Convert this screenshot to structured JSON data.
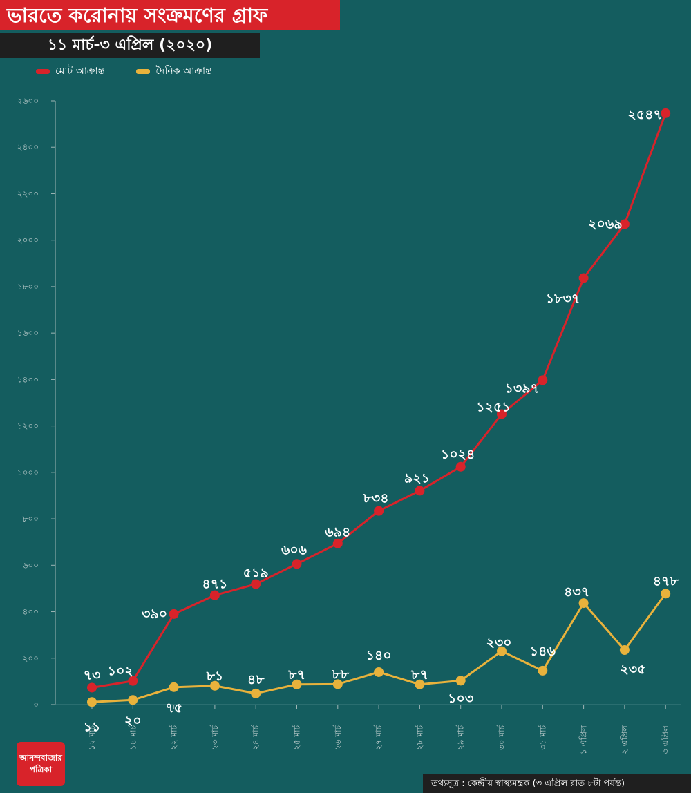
{
  "header": {
    "title": "ভারতে করোনায় সংক্রমণের গ্রাফ",
    "subtitle": "১১ মার্চ-৩ এপ্রিল (২০২০)"
  },
  "legend": {
    "total_label": "মোট আক্রান্ত",
    "daily_label": "দৈনিক আক্রান্ত"
  },
  "colors": {
    "background": "#145d5f",
    "total": "#d8232a",
    "daily": "#e8b23c"
  },
  "chart_data": {
    "type": "line",
    "title": "ভারতে করোনায় সংক্রমণের গ্রাফ",
    "xlabel": "",
    "ylabel": "",
    "ylim": [
      0,
      2600
    ],
    "yticks": [
      0,
      200,
      400,
      600,
      800,
      1000,
      1200,
      1400,
      1600,
      1800,
      2000,
      2200,
      2400,
      2600
    ],
    "ytick_labels": [
      "০",
      "২০০",
      "৪০০",
      "৬০০",
      "৮০০",
      "১০০০",
      "১২০০",
      "১৪০০",
      "১৬০০",
      "১৮০০",
      "২০০০",
      "২২০০",
      "২৪০০",
      "২৬০০"
    ],
    "categories": [
      "১২ মার্চ",
      "১৪ মার্চ",
      "২২ মার্চ",
      "২৩ মার্চ",
      "২৪ মার্চ",
      "২৫ মার্চ",
      "২৬ মার্চ",
      "২৭ মার্চ",
      "২৮ মার্চ",
      "২৯ মার্চ",
      "৩০ মার্চ",
      "৩১ মার্চ",
      "১ এপ্রিল",
      "২ এপ্রিল",
      "৩ এপ্রিল"
    ],
    "series": [
      {
        "name": "মোট আক্রান্ত",
        "values": [
          73,
          102,
          390,
          471,
          519,
          606,
          694,
          834,
          921,
          1024,
          1251,
          1397,
          1837,
          2069,
          2547
        ],
        "labels": [
          "৭৩",
          "১০২",
          "৩৯০",
          "৪৭১",
          "৫১৯",
          "৬০৬",
          "৬৯৪",
          "৮৩৪",
          "৯২১",
          "১০২৪",
          "১২৫১",
          "১৩৯৭",
          "১৮৩৭",
          "২০৬৯",
          "২৫৪৭"
        ]
      },
      {
        "name": "দৈনিক আক্রান্ত",
        "values": [
          11,
          20,
          75,
          81,
          48,
          87,
          88,
          140,
          87,
          103,
          230,
          146,
          437,
          235,
          478
        ],
        "labels": [
          "১১",
          "২০",
          "৭৫",
          "৮১",
          "৪৮",
          "৮৭",
          "৮৮",
          "১৪০",
          "৮৭",
          "১০৩",
          "২৩০",
          "১৪৬",
          "৪৩৭",
          "২৩৫",
          "৪৭৮"
        ]
      }
    ]
  },
  "footer": {
    "logo_line1": "আনন্দবাজার",
    "logo_line2": "পত্রিকা",
    "source": "তথ্যসূত্র : কেন্দ্রীয় স্বাস্থ্যমন্ত্রক (৩ এপ্রিল রাত ৮টা পর্যন্ত)"
  }
}
